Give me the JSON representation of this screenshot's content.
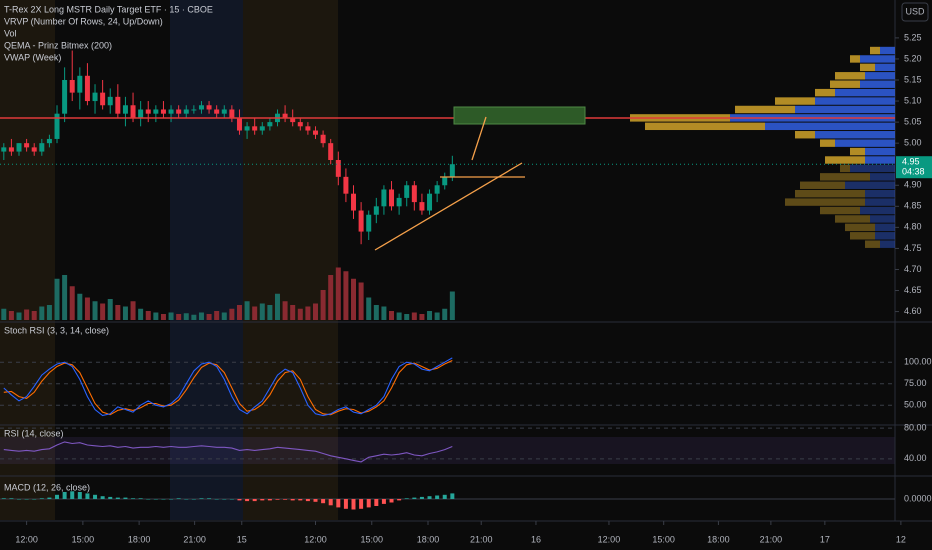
{
  "chart_data": {
    "type": "candlestick",
    "title": "T-Rex 2X Long MSTR Daily Target ETF · 15 · CBOE",
    "indicators": [
      "VRVP (Number Of Rows, 24, Up/Down)",
      "Vol",
      "QEMA - Prinz Bitmex (200)",
      "VWAP (Week)"
    ],
    "currency": "USD",
    "countdown": "04:38",
    "up_color": "#089981",
    "down_color": "#f23645",
    "volume_up_color": "#1d6b62",
    "volume_down_color": "#8a2a31",
    "x": [
      0,
      1,
      2,
      3,
      4,
      5,
      6,
      7,
      8,
      9,
      10,
      11,
      12,
      13,
      14,
      15,
      16,
      17,
      18,
      19,
      20,
      21,
      22,
      23,
      24,
      25,
      26,
      27,
      28,
      29,
      30,
      31,
      32,
      33,
      34,
      35,
      36,
      37,
      38,
      39,
      40,
      41,
      42,
      43,
      44,
      45,
      46,
      47,
      48,
      49,
      50,
      51,
      52,
      53,
      54,
      55,
      56,
      57,
      58,
      59
    ],
    "xlim": [
      -0.5,
      119.2
    ],
    "xticks": [
      {
        "value": 3,
        "label": "12:00"
      },
      {
        "value": 10.4,
        "label": "15:00"
      },
      {
        "value": 17.8,
        "label": "18:00"
      },
      {
        "value": 25.1,
        "label": "21:00"
      },
      {
        "value": 31.3,
        "label": "15"
      },
      {
        "value": 41,
        "label": "12:00"
      },
      {
        "value": 48.4,
        "label": "15:00"
      },
      {
        "value": 55.8,
        "label": "18:00"
      },
      {
        "value": 62.8,
        "label": "21:00"
      },
      {
        "value": 70,
        "label": "16"
      },
      {
        "value": 79.6,
        "label": "12:00"
      },
      {
        "value": 86.8,
        "label": "15:00"
      },
      {
        "value": 94,
        "label": "18:00"
      },
      {
        "value": 100.9,
        "label": "21:00"
      },
      {
        "value": 108,
        "label": "17"
      },
      {
        "value": 118,
        "label": "12"
      }
    ],
    "ylim": [
      4.58,
      5.34
    ],
    "yticks": [
      5.25,
      {
        "value": 5.2,
        "label": "5.20"
      },
      5.15,
      {
        "value": 5.1,
        "label": "5.10"
      },
      5.05,
      {
        "value": 5,
        "label": "5.00"
      },
      {
        "value": 4.9,
        "label": "4.90"
      },
      4.85,
      {
        "value": 4.8,
        "label": "4.80"
      },
      4.75,
      {
        "value": 4.7,
        "label": "4.70"
      },
      4.65,
      {
        "value": 4.6,
        "label": "4.60"
      }
    ],
    "open": [
      4.98,
      4.99,
      4.98,
      5.0,
      4.99,
      4.98,
      5.0,
      5.01,
      5.07,
      5.15,
      5.12,
      5.16,
      5.1,
      5.12,
      5.09,
      5.11,
      5.07,
      5.09,
      5.06,
      5.08,
      5.07,
      5.08,
      5.07,
      5.08,
      5.07,
      5.08,
      5.08,
      5.09,
      5.08,
      5.07,
      5.08,
      5.06,
      5.03,
      5.04,
      5.03,
      5.04,
      5.05,
      5.07,
      5.06,
      5.05,
      5.04,
      5.03,
      5.02,
      5.0,
      4.96,
      4.92,
      4.88,
      4.84,
      4.79,
      4.83,
      4.85,
      4.89,
      4.85,
      4.87,
      4.9,
      4.86,
      4.84,
      4.88,
      4.9,
      4.92
    ],
    "high": [
      5.0,
      5.01,
      5.0,
      5.01,
      5.0,
      5.01,
      5.02,
      5.09,
      5.18,
      5.22,
      5.18,
      5.19,
      5.14,
      5.15,
      5.13,
      5.14,
      5.11,
      5.12,
      5.1,
      5.1,
      5.09,
      5.1,
      5.09,
      5.09,
      5.09,
      5.09,
      5.1,
      5.1,
      5.09,
      5.09,
      5.09,
      5.08,
      5.05,
      5.06,
      5.05,
      5.06,
      5.08,
      5.09,
      5.08,
      5.06,
      5.05,
      5.04,
      5.03,
      5.01,
      4.98,
      4.94,
      4.9,
      4.86,
      4.84,
      4.87,
      4.9,
      4.91,
      4.88,
      4.91,
      4.91,
      4.88,
      4.89,
      4.91,
      4.93,
      4.97
    ],
    "low": [
      4.96,
      4.97,
      4.97,
      4.98,
      4.97,
      4.97,
      4.99,
      5.0,
      5.05,
      5.1,
      5.08,
      5.09,
      5.07,
      5.08,
      5.07,
      5.06,
      5.04,
      5.05,
      5.04,
      5.05,
      5.05,
      5.06,
      5.05,
      5.06,
      5.06,
      5.07,
      5.07,
      5.07,
      5.06,
      5.06,
      5.05,
      5.02,
      5.01,
      5.02,
      5.02,
      5.03,
      5.04,
      5.05,
      5.04,
      5.03,
      5.02,
      5.01,
      4.99,
      4.95,
      4.9,
      4.86,
      4.82,
      4.76,
      4.77,
      4.81,
      4.83,
      4.84,
      4.83,
      4.85,
      4.84,
      4.83,
      4.83,
      4.86,
      4.89,
      4.91
    ],
    "close": [
      4.99,
      4.98,
      5.0,
      4.99,
      4.98,
      5.0,
      5.01,
      5.07,
      5.15,
      5.12,
      5.16,
      5.1,
      5.12,
      5.09,
      5.11,
      5.07,
      5.09,
      5.06,
      5.08,
      5.07,
      5.08,
      5.07,
      5.08,
      5.07,
      5.08,
      5.08,
      5.09,
      5.08,
      5.07,
      5.08,
      5.06,
      5.03,
      5.04,
      5.03,
      5.04,
      5.05,
      5.07,
      5.06,
      5.05,
      5.04,
      5.03,
      5.02,
      5.0,
      4.96,
      4.92,
      4.88,
      4.84,
      4.79,
      4.83,
      4.85,
      4.89,
      4.85,
      4.87,
      4.9,
      4.86,
      4.84,
      4.88,
      4.9,
      4.92,
      4.95
    ],
    "volume": [
      15,
      12,
      10,
      14,
      12,
      18,
      20,
      55,
      60,
      45,
      35,
      30,
      25,
      22,
      28,
      20,
      18,
      25,
      15,
      12,
      10,
      8,
      10,
      8,
      9,
      7,
      10,
      8,
      12,
      10,
      15,
      20,
      25,
      18,
      22,
      20,
      35,
      25,
      20,
      15,
      18,
      22,
      40,
      60,
      70,
      65,
      55,
      50,
      30,
      20,
      18,
      12,
      10,
      8,
      10,
      8,
      12,
      10,
      15,
      38
    ],
    "volume_profile": {
      "up_color": "#2f5bd6",
      "down_color": "#c49a28",
      "levels": [
        5.22,
        5.2,
        5.18,
        5.16,
        5.14,
        5.12,
        5.1,
        5.08,
        5.06,
        5.04,
        5.02,
        5.0,
        4.98,
        4.96,
        4.94,
        4.92,
        4.9,
        4.88,
        4.86,
        4.84,
        4.82,
        4.8,
        4.78,
        4.76
      ],
      "up": [
        15,
        35,
        20,
        30,
        35,
        60,
        80,
        100,
        165,
        130,
        80,
        60,
        30,
        30,
        45,
        25,
        50,
        30,
        30,
        35,
        25,
        20,
        20,
        15
      ],
      "down": [
        10,
        10,
        15,
        30,
        30,
        20,
        40,
        60,
        100,
        120,
        20,
        15,
        15,
        40,
        10,
        50,
        45,
        70,
        80,
        40,
        35,
        30,
        25,
        15
      ]
    },
    "stoch": {
      "title": "Stoch RSI (3, 3, 14, close)",
      "ylim": [
        27,
        141
      ],
      "yticks": [
        {
          "value": 100,
          "label": "100.00"
        },
        {
          "value": 75,
          "label": "75.00"
        },
        {
          "value": 50,
          "label": "50.00"
        }
      ],
      "k_color": "#2962ff",
      "d_color": "#ff6d00",
      "k": [
        70,
        62,
        55,
        60,
        72,
        85,
        92,
        98,
        100,
        95,
        80,
        60,
        45,
        38,
        40,
        48,
        45,
        42,
        50,
        55,
        50,
        48,
        52,
        60,
        75,
        90,
        98,
        100,
        95,
        80,
        60,
        45,
        40,
        48,
        55,
        70,
        85,
        92,
        88,
        70,
        50,
        40,
        38,
        40,
        45,
        48,
        42,
        40,
        45,
        50,
        60,
        80,
        95,
        100,
        98,
        92,
        90,
        95,
        100,
        105
      ],
      "d": [
        65,
        66,
        60,
        58,
        65,
        78,
        88,
        95,
        99,
        97,
        88,
        70,
        52,
        42,
        39,
        44,
        46,
        44,
        47,
        52,
        52,
        49,
        50,
        56,
        68,
        82,
        94,
        99,
        97,
        88,
        70,
        52,
        43,
        45,
        51,
        62,
        78,
        88,
        90,
        80,
        60,
        45,
        40,
        39,
        43,
        46,
        45,
        41,
        43,
        48,
        55,
        70,
        88,
        97,
        99,
        95,
        91,
        93,
        98,
        102
      ]
    },
    "rsi": {
      "title": "RSI (14, close)",
      "ylim": [
        19,
        84
      ],
      "yticks": [
        {
          "value": 80,
          "label": "80.00"
        },
        {
          "value": 40,
          "label": "40.00"
        }
      ],
      "color": "#7e57c2",
      "values": [
        52,
        51,
        50,
        51,
        50,
        52,
        53,
        58,
        62,
        60,
        61,
        58,
        57,
        56,
        57,
        55,
        56,
        54,
        55,
        55,
        56,
        55,
        56,
        55,
        55,
        56,
        57,
        56,
        55,
        55,
        54,
        51,
        52,
        51,
        52,
        53,
        55,
        54,
        53,
        52,
        51,
        50,
        47,
        44,
        42,
        40,
        38,
        36,
        42,
        44,
        46,
        45,
        46,
        48,
        45,
        44,
        47,
        49,
        52,
        56
      ]
    },
    "macd": {
      "title": "MACD (12, 26, close)",
      "ylim": [
        -0.03,
        0.03
      ],
      "yticks": [
        {
          "value": 0,
          "label": "0.0000"
        }
      ],
      "pos_color": "#26a69a",
      "neg_color": "#ff5252",
      "histogram": [
        0.001,
        0.001,
        0,
        0,
        0,
        0.001,
        0.002,
        0.006,
        0.01,
        0.011,
        0.01,
        0.008,
        0.006,
        0.004,
        0.003,
        0.002,
        0.002,
        0.001,
        0.001,
        0,
        0,
        0,
        0,
        0.001,
        0,
        0,
        0.001,
        0.001,
        0,
        0,
        0,
        -0.002,
        -0.003,
        -0.003,
        -0.002,
        -0.002,
        -0.001,
        -0.001,
        -0.002,
        -0.002,
        -0.003,
        -0.004,
        -0.006,
        -0.009,
        -0.012,
        -0.014,
        -0.015,
        -0.014,
        -0.012,
        -0.01,
        -0.007,
        -0.005,
        -0.002,
        0.001,
        0.002,
        0.003,
        0.004,
        0.005,
        0.006,
        0.008
      ]
    }
  }
}
